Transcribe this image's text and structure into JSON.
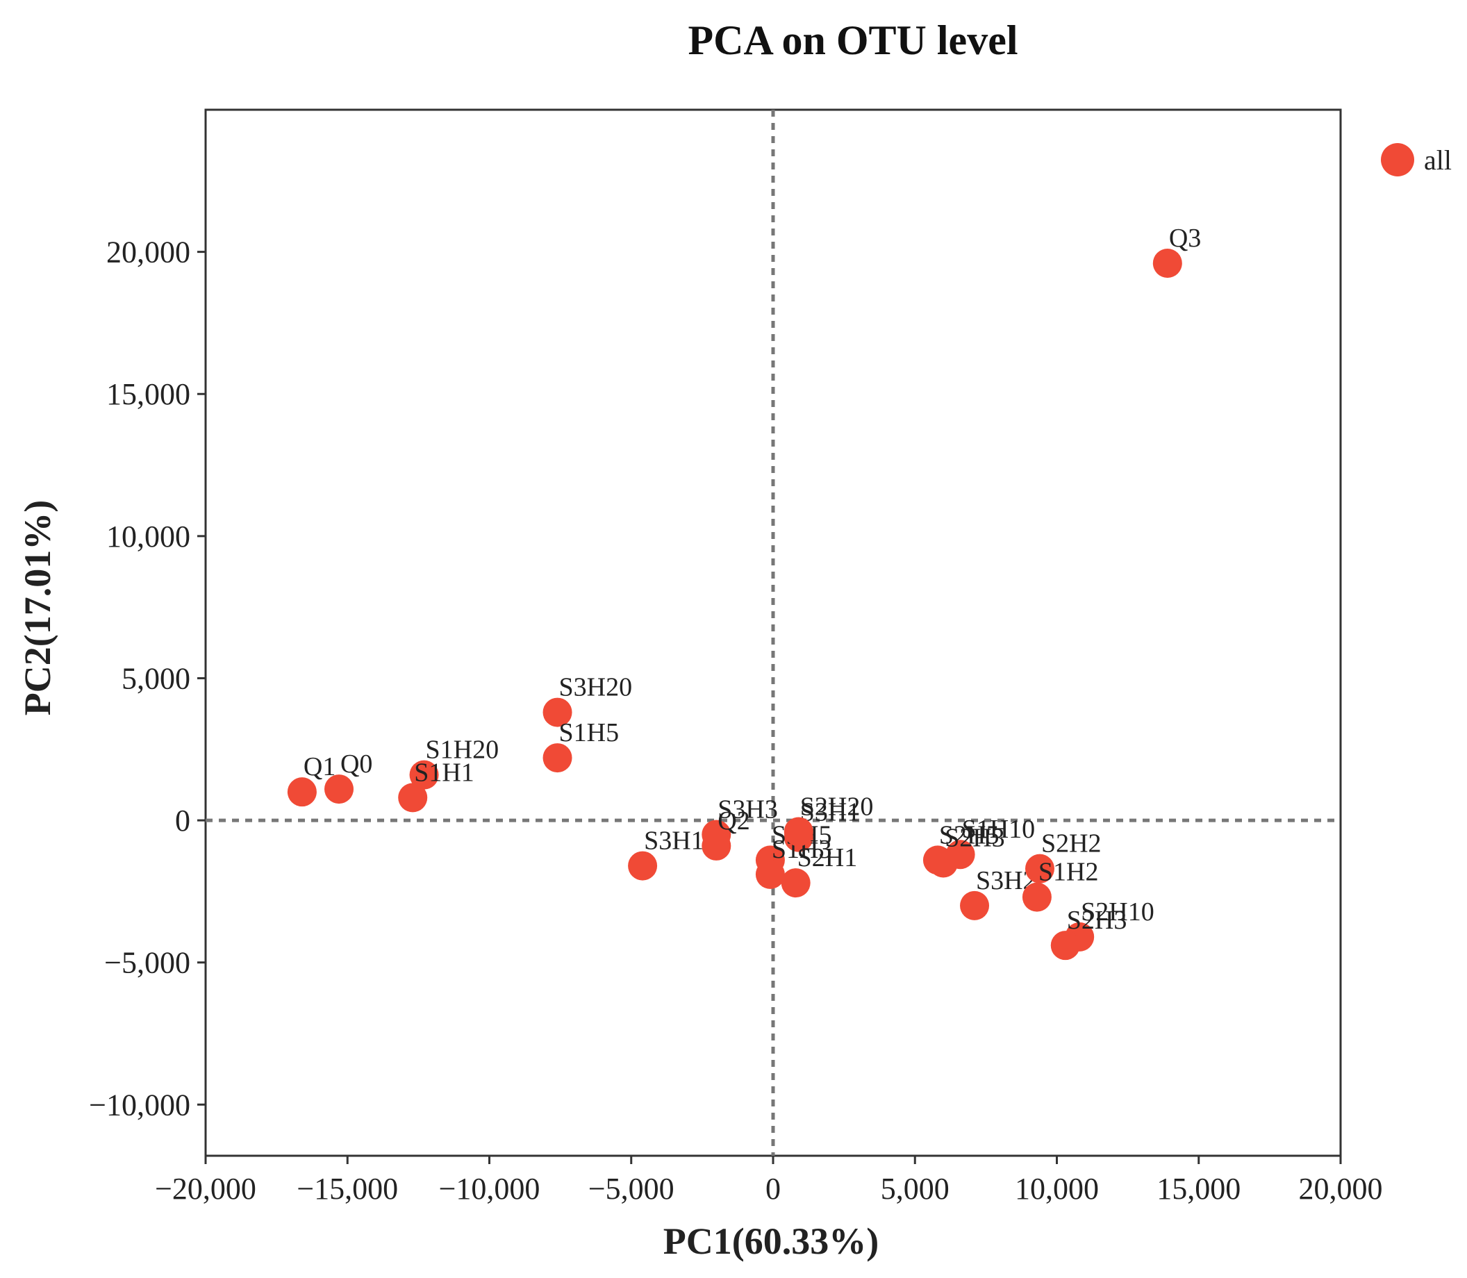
{
  "chart_data": {
    "type": "scatter",
    "title": "PCA on OTU level",
    "xlabel": "PC1(60.33%)",
    "ylabel": "PC2(17.01%)",
    "xlim": [
      -20000,
      20000
    ],
    "ylim": [
      -11800,
      25000
    ],
    "x_ticks": [
      -20000,
      -15000,
      -10000,
      -5000,
      0,
      5000,
      10000,
      15000,
      20000
    ],
    "x_tick_labels": [
      "−20,000",
      "−15,000",
      "−10,000",
      "−5,000",
      "0",
      "5,000",
      "10,000",
      "15,000",
      "20,000"
    ],
    "y_ticks": [
      -10000,
      -5000,
      0,
      5000,
      10000,
      15000,
      20000
    ],
    "y_tick_labels": [
      "−10,000",
      "−5,000",
      "0",
      "5,000",
      "10,000",
      "15,000",
      "20,000"
    ],
    "reference_lines": {
      "x": 0,
      "y": 0,
      "style": "dashed"
    },
    "grid": false,
    "legend": {
      "position": "top-right",
      "entries": [
        "all"
      ]
    },
    "series": [
      {
        "name": "all",
        "color": "#f04a36",
        "points": [
          {
            "label": "Q3",
            "x": 13900,
            "y": 19600
          },
          {
            "label": "S3H20",
            "x": -7600,
            "y": 3800
          },
          {
            "label": "S1H5",
            "x": -7600,
            "y": 2200
          },
          {
            "label": "Q1",
            "x": -16600,
            "y": 1000
          },
          {
            "label": "Q0",
            "x": -15300,
            "y": 1100
          },
          {
            "label": "S1H20",
            "x": -12300,
            "y": 1600
          },
          {
            "label": "S1H1",
            "x": -12700,
            "y": 800
          },
          {
            "label": "S3H10",
            "x": -4600,
            "y": -1600
          },
          {
            "label": "S3H3",
            "x": -2000,
            "y": -500
          },
          {
            "label": "Q2",
            "x": -2000,
            "y": -900
          },
          {
            "label": "S3H1",
            "x": 900,
            "y": -600
          },
          {
            "label": "S3H5",
            "x": -100,
            "y": -1400
          },
          {
            "label": "S1H3",
            "x": -100,
            "y": -1900
          },
          {
            "label": "S2H20",
            "x": 900,
            "y": -400
          },
          {
            "label": "S2H1",
            "x": 800,
            "y": -2200
          },
          {
            "label": "S2H5",
            "x": 5800,
            "y": -1400
          },
          {
            "label": "S1H10",
            "x": 6600,
            "y": -1200
          },
          {
            "label": "S2H3",
            "x": 6000,
            "y": -1500
          },
          {
            "label": "S3H2",
            "x": 7100,
            "y": -3000
          },
          {
            "label": "S2H2",
            "x": 9400,
            "y": -1700
          },
          {
            "label": "S1H2",
            "x": 9300,
            "y": -2700
          },
          {
            "label": "S2H10",
            "x": 10800,
            "y": -4100
          },
          {
            "label": "S2H3",
            "x": 10300,
            "y": -4400
          }
        ]
      }
    ]
  }
}
